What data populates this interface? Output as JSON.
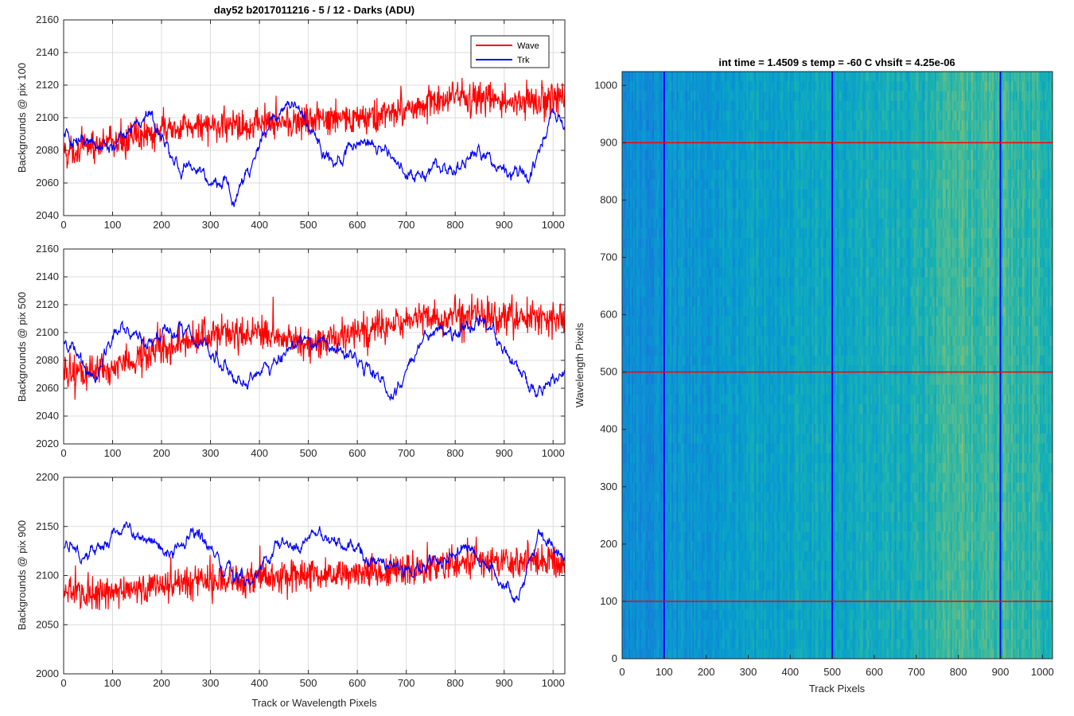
{
  "figure": {
    "panels": [
      {
        "ylabel": "Backgrounds @ pix 100"
      },
      {
        "ylabel": "Backgrounds @ pix 500"
      },
      {
        "ylabel": "Backgrounds @ pix 900"
      }
    ],
    "shared_xlabel": "Track or Wavelength Pixels",
    "title": "day52 b2017011216 - 5 / 12 - Darks (ADU)",
    "legend": [
      "Wave",
      "Trk"
    ],
    "image": {
      "title": "int time = 1.4509 s    temp = -60 C    vhsift = 4.25e-06",
      "xlabel": "Track Pixels",
      "ylabel": "Wavelength Pixels"
    }
  },
  "chart_data": [
    {
      "type": "line",
      "ylabel": "Backgrounds @ pix 100",
      "title": "day52 b2017011216 - 5 / 12 - Darks (ADU)",
      "xlim": [
        0,
        1024
      ],
      "ylim": [
        2040,
        2160
      ],
      "xticks": [
        0,
        100,
        200,
        300,
        400,
        500,
        600,
        700,
        800,
        900,
        1000
      ],
      "yticks": [
        2040,
        2060,
        2080,
        2100,
        2120,
        2140,
        2160
      ],
      "grid": true,
      "legend_position": "top-right",
      "series": [
        {
          "name": "Wave",
          "color": "#ff0000",
          "x": [
            0,
            100,
            200,
            300,
            400,
            500,
            600,
            700,
            800,
            900,
            1024
          ],
          "y": [
            2078,
            2085,
            2092,
            2095,
            2097,
            2098,
            2099,
            2105,
            2112,
            2110,
            2113
          ]
        },
        {
          "name": "Trk",
          "color": "#0000ff",
          "x": [
            0,
            50,
            100,
            175,
            225,
            300,
            350,
            425,
            475,
            550,
            600,
            650,
            700,
            750,
            800,
            850,
            900,
            950,
            1000,
            1024
          ],
          "y": [
            2090,
            2082,
            2085,
            2100,
            2072,
            2065,
            2052,
            2100,
            2110,
            2070,
            2086,
            2080,
            2062,
            2070,
            2068,
            2080,
            2070,
            2062,
            2104,
            2095
          ]
        }
      ]
    },
    {
      "type": "line",
      "ylabel": "Backgrounds @ pix 500",
      "xlim": [
        0,
        1024
      ],
      "ylim": [
        2020,
        2160
      ],
      "xticks": [
        0,
        100,
        200,
        300,
        400,
        500,
        600,
        700,
        800,
        900,
        1000
      ],
      "yticks": [
        2020,
        2040,
        2060,
        2080,
        2100,
        2120,
        2140,
        2160
      ],
      "grid": true,
      "series": [
        {
          "name": "Wave",
          "color": "#ff0000",
          "x": [
            0,
            100,
            200,
            300,
            400,
            500,
            600,
            700,
            800,
            900,
            1024
          ],
          "y": [
            2068,
            2076,
            2088,
            2098,
            2098,
            2092,
            2100,
            2108,
            2112,
            2112,
            2110
          ]
        },
        {
          "name": "Trk",
          "color": "#0000ff",
          "x": [
            0,
            60,
            120,
            180,
            240,
            300,
            350,
            420,
            500,
            560,
            620,
            680,
            740,
            790,
            850,
            920,
            960,
            1024
          ],
          "y": [
            2090,
            2070,
            2105,
            2092,
            2105,
            2088,
            2065,
            2072,
            2095,
            2090,
            2075,
            2055,
            2100,
            2098,
            2112,
            2078,
            2055,
            2072
          ]
        }
      ]
    },
    {
      "type": "line",
      "ylabel": "Backgrounds @ pix 900",
      "xlabel": "Track or Wavelength Pixels",
      "xlim": [
        0,
        1024
      ],
      "ylim": [
        2000,
        2200
      ],
      "xticks": [
        0,
        100,
        200,
        300,
        400,
        500,
        600,
        700,
        800,
        900,
        1000
      ],
      "yticks": [
        2000,
        2050,
        2100,
        2150,
        2200
      ],
      "grid": true,
      "series": [
        {
          "name": "Wave",
          "color": "#ff0000",
          "x": [
            0,
            100,
            200,
            300,
            400,
            500,
            600,
            700,
            800,
            900,
            1024
          ],
          "y": [
            2080,
            2083,
            2090,
            2095,
            2098,
            2100,
            2102,
            2106,
            2112,
            2115,
            2112
          ]
        },
        {
          "name": "Trk",
          "color": "#0000ff",
          "x": [
            0,
            60,
            115,
            170,
            220,
            265,
            310,
            380,
            430,
            480,
            530,
            600,
            650,
            700,
            760,
            820,
            880,
            930,
            970,
            1024
          ],
          "y": [
            2128,
            2122,
            2152,
            2135,
            2118,
            2150,
            2115,
            2092,
            2128,
            2130,
            2142,
            2128,
            2110,
            2105,
            2112,
            2130,
            2102,
            2078,
            2140,
            2115
          ]
        }
      ]
    },
    {
      "type": "heatmap",
      "title": "int time = 1.4509 s    temp = -60 C    vhsift = 4.25e-06",
      "xlabel": "Track Pixels",
      "ylabel": "Wavelength Pixels",
      "xlim": [
        0,
        1024
      ],
      "ylim": [
        0,
        1024
      ],
      "xticks": [
        0,
        100,
        200,
        300,
        400,
        500,
        600,
        700,
        800,
        900,
        1000
      ],
      "yticks": [
        0,
        100,
        200,
        300,
        400,
        500,
        600,
        700,
        800,
        900,
        1000
      ],
      "colormap": "parula",
      "columns": [
        0,
        100,
        200,
        300,
        400,
        500,
        600,
        700,
        750,
        800,
        850,
        900,
        950,
        1024
      ],
      "column_level": [
        0.42,
        0.45,
        0.48,
        0.52,
        0.55,
        0.56,
        0.58,
        0.6,
        0.66,
        0.72,
        0.68,
        0.7,
        0.68,
        0.62
      ],
      "vertical_markers": {
        "color": "#0000ff",
        "x": [
          100,
          500,
          900
        ]
      },
      "horizontal_markers": {
        "color": "#ff0000",
        "y": [
          100,
          500,
          900
        ]
      }
    }
  ]
}
